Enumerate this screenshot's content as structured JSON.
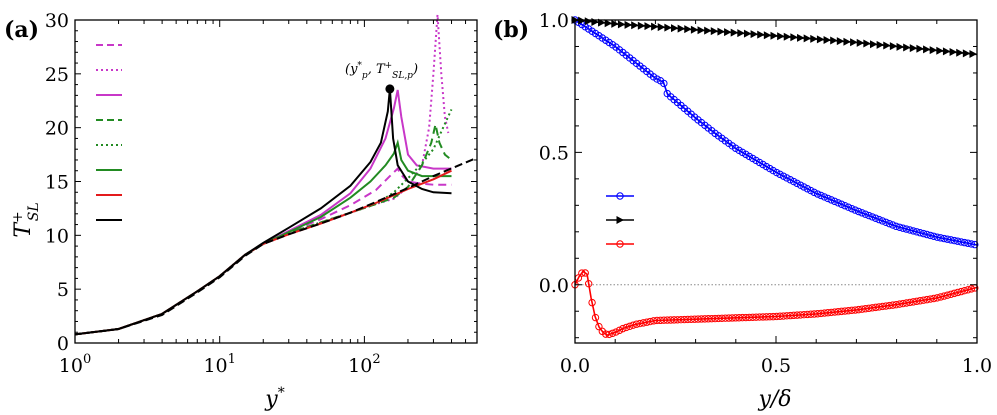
{
  "chart_data": [
    {
      "panel": "(a)",
      "type": "line",
      "xscale": "log",
      "xlim": [
        1,
        600
      ],
      "ylim": [
        0,
        30
      ],
      "xticks": [
        1,
        10,
        100
      ],
      "xtick_labels": [
        "10",
        "10",
        "10"
      ],
      "xtick_exponents": [
        "0",
        "1",
        "2"
      ],
      "yticks": [
        0,
        5,
        10,
        15,
        20,
        25,
        30
      ],
      "ytick_labels": [
        "0",
        "5",
        "10",
        "15",
        "20",
        "25",
        "30"
      ],
      "xlabel": "y",
      "xlabel_sup": "*",
      "ylabel": "T",
      "ylabel_sup": "+",
      "ylabel_sub": "SL",
      "annotation": {
        "text": "(y*p, T+SL,p)",
        "point": {
          "x": 150,
          "y": 23.6
        }
      },
      "legend_location": "upper-left",
      "series": [
        {
          "color": "#c837c8",
          "dash": "8,5",
          "points": [
            [
              1,
              0.8
            ],
            [
              2,
              1.3
            ],
            [
              4,
              2.7
            ],
            [
              7,
              4.8
            ],
            [
              10,
              6.2
            ],
            [
              15,
              8.2
            ],
            [
              20,
              9.2
            ],
            [
              30,
              10.3
            ],
            [
              50,
              11.5
            ],
            [
              80,
              12.8
            ],
            [
              120,
              14.2
            ],
            [
              150,
              15.5
            ],
            [
              170,
              16.2
            ],
            [
              180,
              15.6
            ],
            [
              200,
              15.0
            ],
            [
              250,
              14.8
            ],
            [
              300,
              14.7
            ],
            [
              400,
              14.7
            ]
          ]
        },
        {
          "color": "#c837c8",
          "dash": "2,3",
          "points": [
            [
              1,
              0.8
            ],
            [
              2,
              1.3
            ],
            [
              4,
              2.7
            ],
            [
              7,
              4.8
            ],
            [
              10,
              6.2
            ],
            [
              15,
              8.2
            ],
            [
              20,
              9.2
            ],
            [
              30,
              10.2
            ],
            [
              50,
              11.2
            ],
            [
              80,
              12.1
            ],
            [
              120,
              12.9
            ],
            [
              160,
              13.4
            ],
            [
              200,
              14.5
            ],
            [
              250,
              16.5
            ],
            [
              280,
              20.0
            ],
            [
              300,
              25.0
            ],
            [
              320,
              30.5
            ],
            [
              340,
              25.0
            ],
            [
              360,
              21.0
            ],
            [
              380,
              19.5
            ]
          ]
        },
        {
          "color": "#c837c8",
          "dash": "",
          "points": [
            [
              1,
              0.8
            ],
            [
              2,
              1.3
            ],
            [
              4,
              2.7
            ],
            [
              7,
              4.8
            ],
            [
              10,
              6.2
            ],
            [
              15,
              8.2
            ],
            [
              20,
              9.2
            ],
            [
              30,
              10.4
            ],
            [
              50,
              11.9
            ],
            [
              80,
              13.9
            ],
            [
              110,
              16.2
            ],
            [
              140,
              19.0
            ],
            [
              160,
              21.8
            ],
            [
              170,
              23.5
            ],
            [
              180,
              21.0
            ],
            [
              200,
              17.5
            ],
            [
              230,
              16.5
            ],
            [
              300,
              16.2
            ],
            [
              400,
              16.2
            ]
          ]
        },
        {
          "color": "#228b22",
          "dash": "8,5",
          "points": [
            [
              1,
              0.8
            ],
            [
              2,
              1.3
            ],
            [
              4,
              2.7
            ],
            [
              7,
              4.8
            ],
            [
              10,
              6.2
            ],
            [
              15,
              8.2
            ],
            [
              20,
              9.2
            ],
            [
              30,
              10.2
            ],
            [
              50,
              11.2
            ],
            [
              80,
              12.1
            ],
            [
              120,
              12.9
            ],
            [
              160,
              13.5
            ],
            [
              200,
              14.5
            ],
            [
              250,
              16.5
            ],
            [
              290,
              18.6
            ],
            [
              310,
              20.3
            ],
            [
              330,
              18.6
            ],
            [
              360,
              17.5
            ],
            [
              400,
              17.0
            ]
          ]
        },
        {
          "color": "#228b22",
          "dash": "2,3",
          "points": [
            [
              1,
              0.8
            ],
            [
              2,
              1.3
            ],
            [
              4,
              2.7
            ],
            [
              7,
              4.8
            ],
            [
              10,
              6.2
            ],
            [
              15,
              8.2
            ],
            [
              20,
              9.2
            ],
            [
              30,
              10.2
            ],
            [
              50,
              11.2
            ],
            [
              80,
              12.1
            ],
            [
              120,
              12.9
            ],
            [
              160,
              14.0
            ],
            [
              200,
              15.3
            ],
            [
              250,
              16.7
            ],
            [
              300,
              18.0
            ],
            [
              350,
              20.0
            ],
            [
              400,
              21.7
            ]
          ]
        },
        {
          "color": "#228b22",
          "dash": "",
          "points": [
            [
              1,
              0.8
            ],
            [
              2,
              1.3
            ],
            [
              4,
              2.7
            ],
            [
              7,
              4.8
            ],
            [
              10,
              6.2
            ],
            [
              15,
              8.2
            ],
            [
              20,
              9.2
            ],
            [
              30,
              10.3
            ],
            [
              50,
              11.7
            ],
            [
              80,
              13.5
            ],
            [
              110,
              15.0
            ],
            [
              140,
              16.5
            ],
            [
              160,
              17.6
            ],
            [
              170,
              18.6
            ],
            [
              180,
              17.0
            ],
            [
              200,
              16.0
            ],
            [
              250,
              15.5
            ],
            [
              300,
              15.5
            ],
            [
              400,
              15.5
            ]
          ]
        },
        {
          "color": "#e31a1c",
          "dash": "",
          "points": [
            [
              1,
              0.8
            ],
            [
              2,
              1.3
            ],
            [
              4,
              2.7
            ],
            [
              7,
              4.8
            ],
            [
              10,
              6.2
            ],
            [
              15,
              8.2
            ],
            [
              20,
              9.2
            ],
            [
              30,
              10.1
            ],
            [
              50,
              11.1
            ],
            [
              80,
              12.1
            ],
            [
              120,
              13.0
            ],
            [
              200,
              14.3
            ],
            [
              300,
              15.2
            ],
            [
              400,
              16.0
            ]
          ]
        },
        {
          "color": "#000000",
          "dash": "",
          "points": [
            [
              1,
              0.8
            ],
            [
              2,
              1.3
            ],
            [
              4,
              2.7
            ],
            [
              7,
              4.8
            ],
            [
              10,
              6.2
            ],
            [
              15,
              8.2
            ],
            [
              20,
              9.3
            ],
            [
              30,
              10.7
            ],
            [
              50,
              12.5
            ],
            [
              80,
              14.6
            ],
            [
              110,
              16.8
            ],
            [
              130,
              18.6
            ],
            [
              145,
              21.5
            ],
            [
              150,
              23.6
            ],
            [
              158,
              19.0
            ],
            [
              170,
              16.5
            ],
            [
              200,
              15.0
            ],
            [
              250,
              14.3
            ],
            [
              300,
              14.0
            ],
            [
              400,
              13.9
            ]
          ]
        },
        {
          "color": "#000000",
          "dash": "8,4",
          "points": [
            [
              1,
              0.8
            ],
            [
              2,
              1.3
            ],
            [
              4,
              2.6
            ],
            [
              7,
              4.7
            ],
            [
              10,
              6.1
            ],
            [
              15,
              8.1
            ],
            [
              20,
              9.2
            ],
            [
              30,
              10.1
            ],
            [
              50,
              11.1
            ],
            [
              80,
              12.1
            ],
            [
              120,
              13.1
            ],
            [
              200,
              14.4
            ],
            [
              300,
              15.5
            ],
            [
              450,
              16.5
            ],
            [
              600,
              17.2
            ]
          ]
        }
      ]
    },
    {
      "panel": "(b)",
      "type": "line",
      "xlim": [
        0,
        1.0
      ],
      "ylim": [
        -0.22,
        1.0
      ],
      "xticks": [
        0.0,
        0.5,
        1.0
      ],
      "xtick_labels": [
        "0.0",
        "0.5",
        "1.0"
      ],
      "yticks": [
        0.0,
        0.5,
        1.0
      ],
      "ytick_labels": [
        "0.0",
        "0.5",
        "1.0"
      ],
      "xlabel": "y/δ",
      "ylabel": "",
      "grid": false,
      "reference_line": {
        "y": 0,
        "style": "dotted",
        "color": "#888888"
      },
      "legend_location": "center-left",
      "series": [
        {
          "color": "#0000ff",
          "marker": "circle",
          "x": [
            0.0,
            0.05,
            0.1,
            0.15,
            0.2,
            0.22,
            0.23,
            0.25,
            0.3,
            0.35,
            0.4,
            0.5,
            0.6,
            0.7,
            0.8,
            0.9,
            1.0
          ],
          "y": [
            1.0,
            0.95,
            0.9,
            0.84,
            0.78,
            0.765,
            0.72,
            0.695,
            0.63,
            0.57,
            0.515,
            0.425,
            0.345,
            0.28,
            0.22,
            0.18,
            0.15
          ]
        },
        {
          "color": "#000000",
          "marker": "triangle-right",
          "x": [
            0.0,
            0.1,
            0.2,
            0.3,
            0.4,
            0.5,
            0.6,
            0.7,
            0.8,
            0.9,
            1.0
          ],
          "y": [
            1.0,
            0.985,
            0.975,
            0.963,
            0.952,
            0.94,
            0.928,
            0.915,
            0.9,
            0.885,
            0.87
          ]
        },
        {
          "color": "#ff0000",
          "marker": "circle",
          "x": [
            0.0,
            0.01,
            0.02,
            0.03,
            0.04,
            0.05,
            0.06,
            0.07,
            0.08,
            0.1,
            0.12,
            0.15,
            0.2,
            0.3,
            0.4,
            0.5,
            0.6,
            0.7,
            0.8,
            0.9,
            1.0
          ],
          "y": [
            0.0,
            0.03,
            0.05,
            0.04,
            -0.05,
            -0.12,
            -0.16,
            -0.18,
            -0.19,
            -0.18,
            -0.165,
            -0.15,
            -0.135,
            -0.13,
            -0.125,
            -0.12,
            -0.11,
            -0.095,
            -0.075,
            -0.05,
            -0.01
          ]
        }
      ]
    }
  ]
}
